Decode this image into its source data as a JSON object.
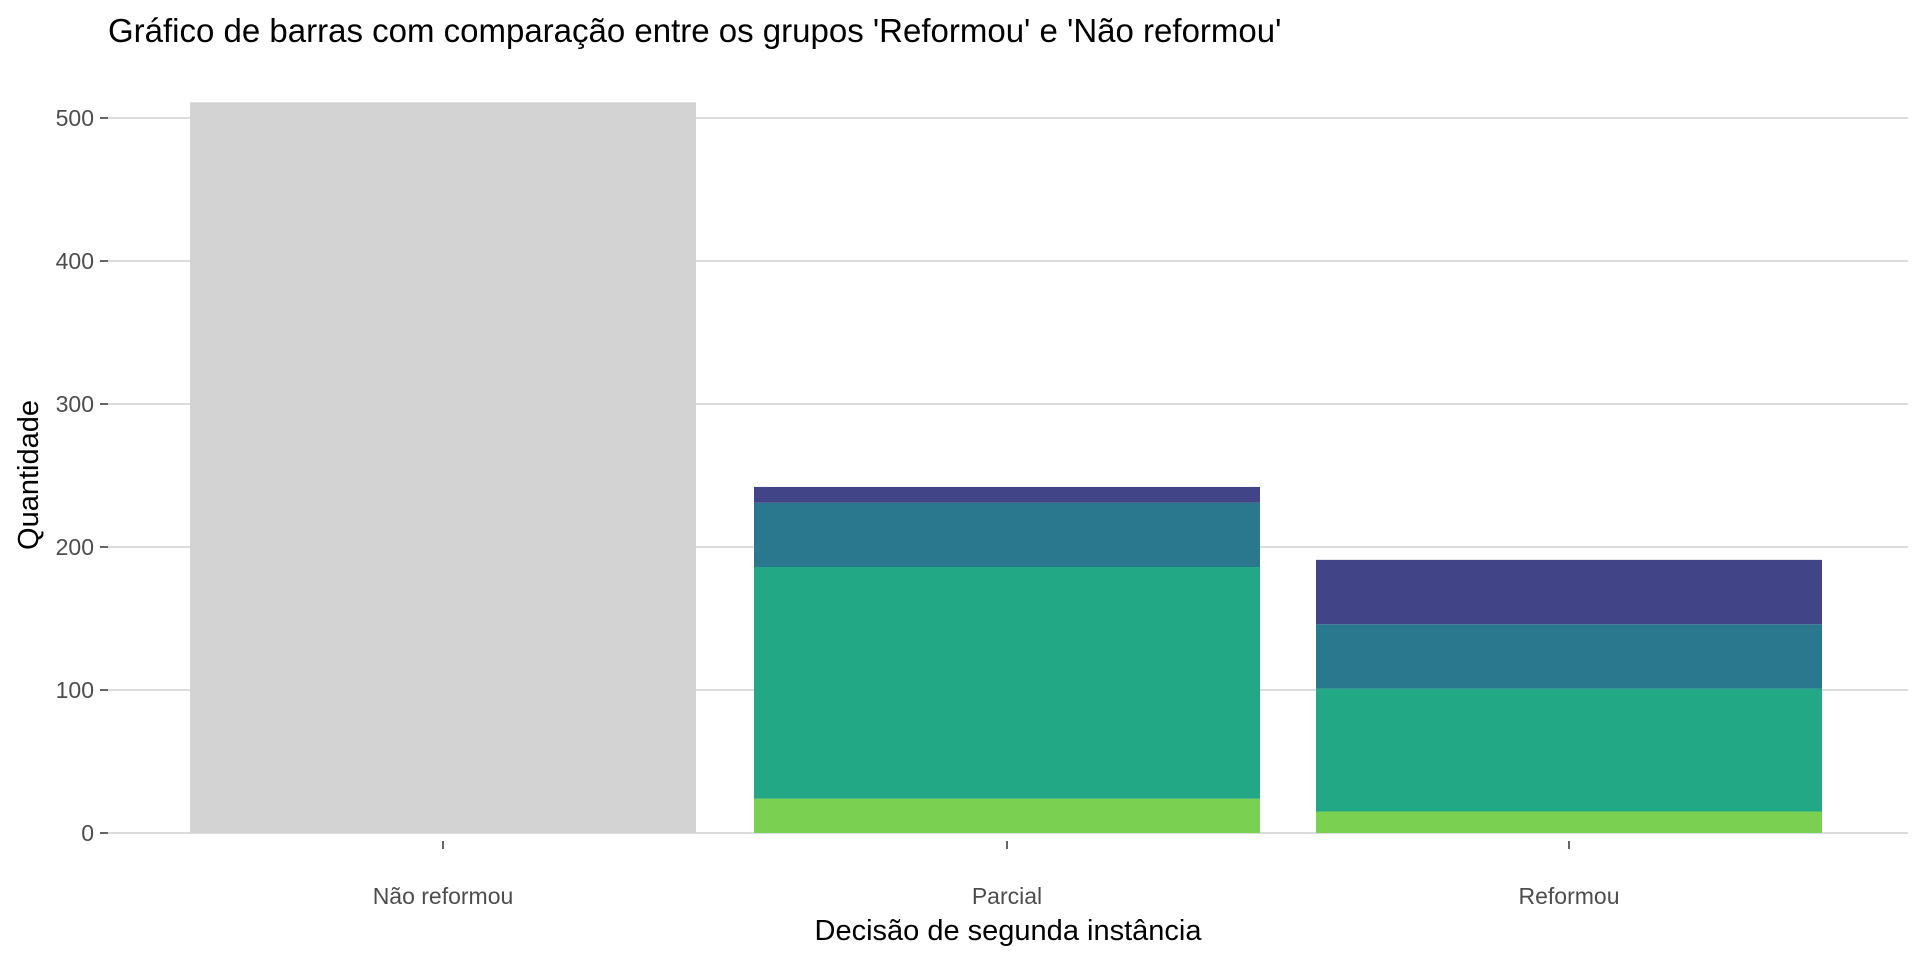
{
  "chart_data": {
    "type": "bar",
    "stacked": true,
    "title": "Gráfico de barras com comparação entre os grupos 'Reformou' e 'Não reformou'",
    "xlabel": "Decisão de segunda instância",
    "ylabel": "Quantidade",
    "categories": [
      "Não reformou",
      "Parcial",
      "Reformou"
    ],
    "ylim": [
      0,
      512
    ],
    "yticks": [
      0,
      100,
      200,
      300,
      400,
      500
    ],
    "grid": true,
    "legend": "none",
    "series": [
      {
        "color": "#d3d3d3",
        "values": [
          511,
          0,
          0
        ]
      },
      {
        "color": "#7ad151",
        "values": [
          0,
          24,
          15
        ]
      },
      {
        "color": "#22a884",
        "values": [
          0,
          162,
          86
        ]
      },
      {
        "color": "#2a788e",
        "values": [
          0,
          45,
          45
        ]
      },
      {
        "color": "#414487",
        "values": [
          0,
          11,
          45
        ]
      }
    ]
  }
}
